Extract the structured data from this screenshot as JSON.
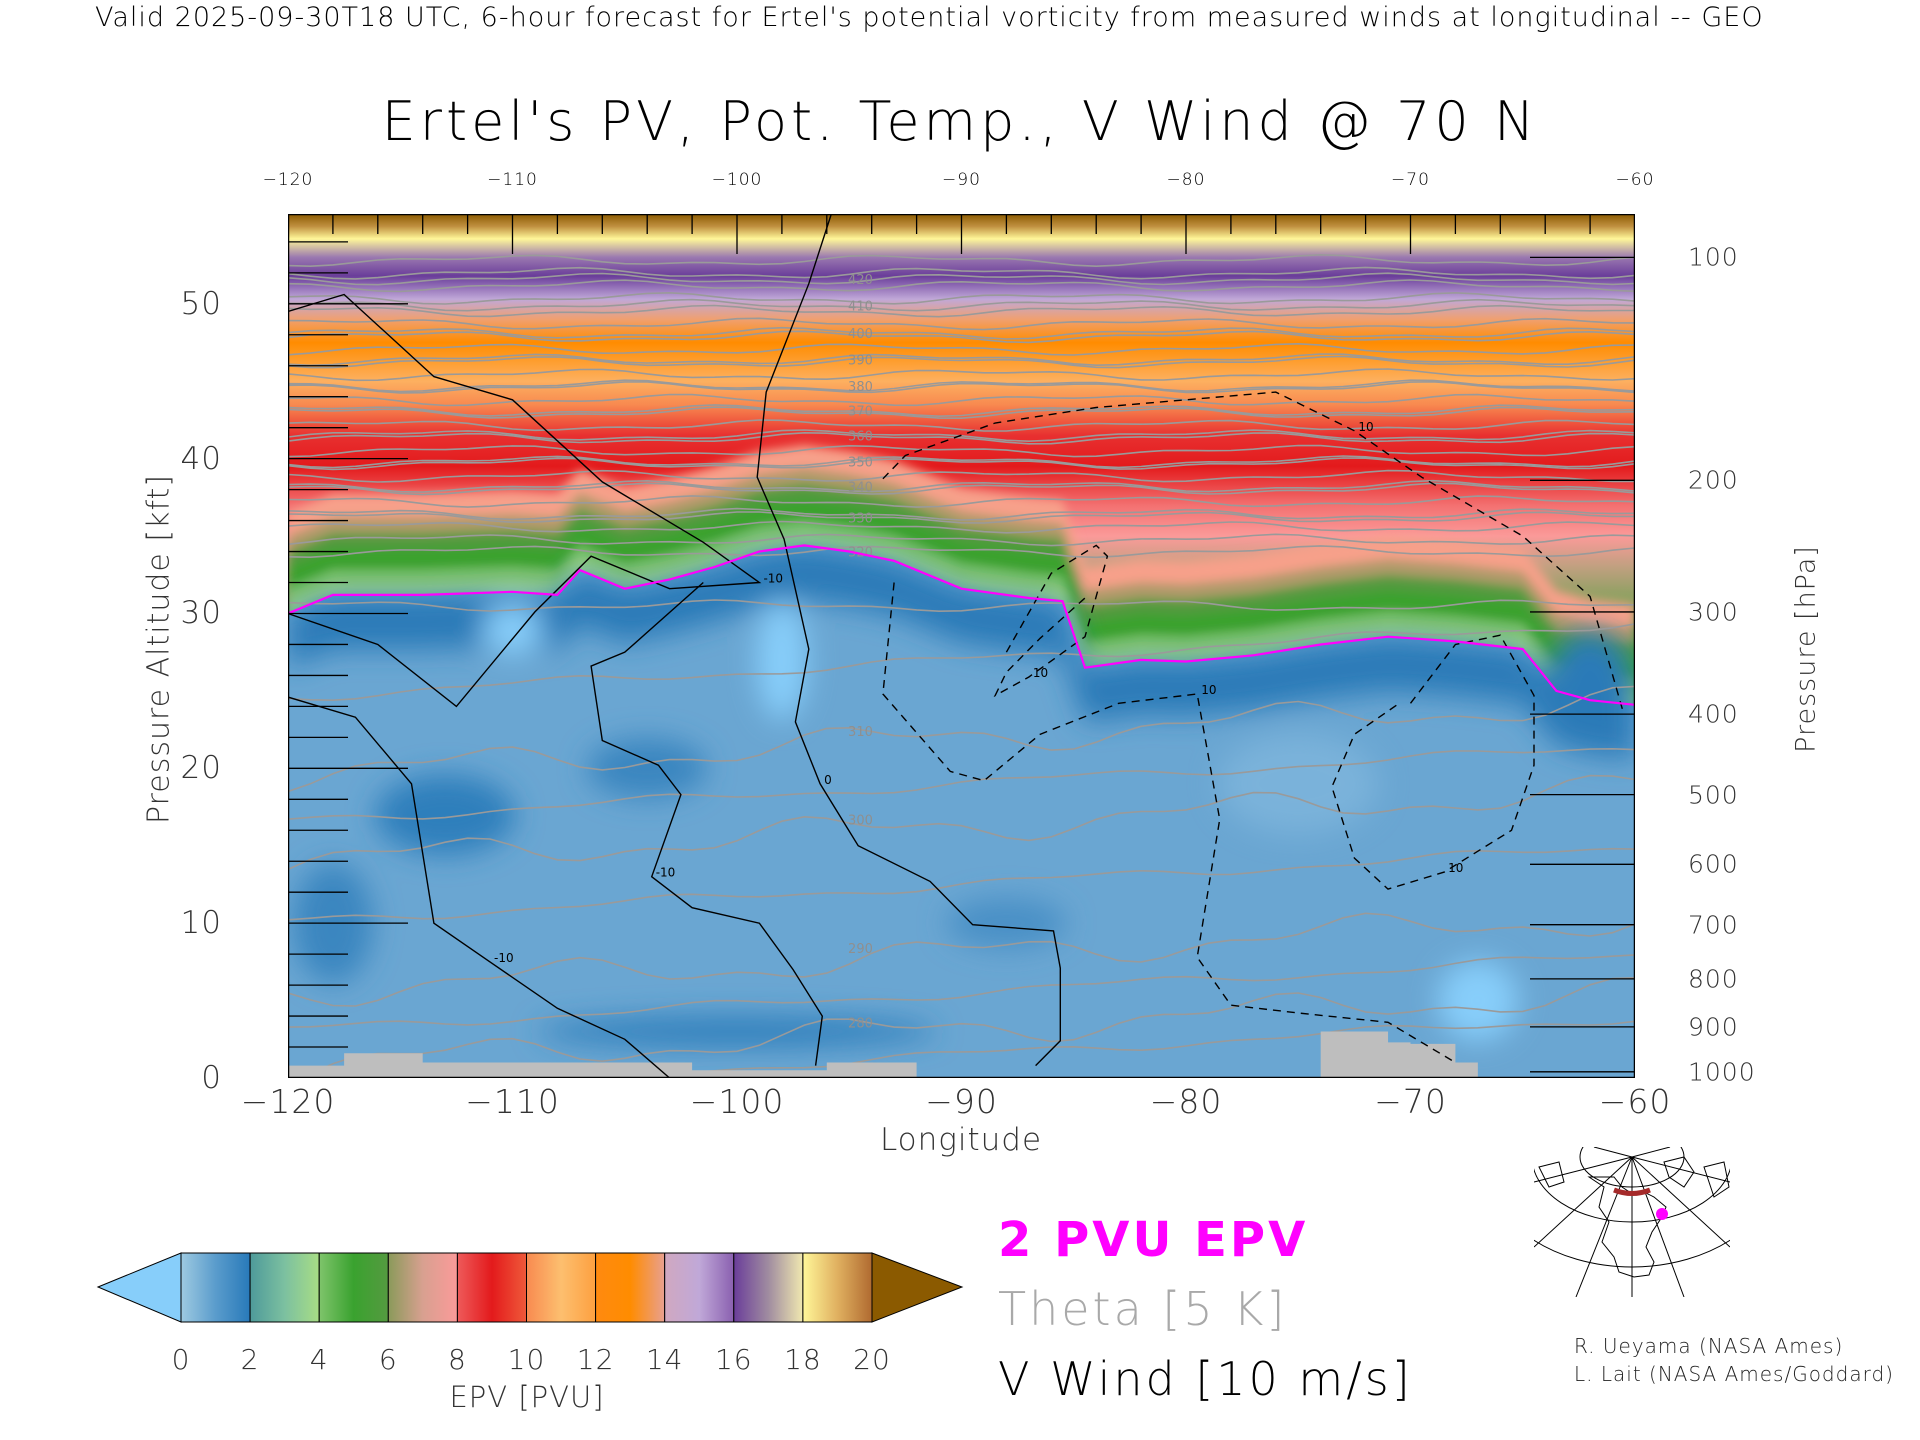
{
  "header": {
    "top_text": "Valid 2025-09-30T18 UTC, 6-hour forecast for Ertel's potential vorticity from measured winds at longitudinal -- GEO",
    "title": "Ertel's PV, Pot. Temp., V Wind @ 70 N"
  },
  "chart_data": {
    "type": "heatmap",
    "title": "Ertel's PV, Pot. Temp., V Wind @ 70 N",
    "xlabel": "Longitude",
    "ylabel": "Pressure Altitude [kft]",
    "y2label": "Pressure [hPa]",
    "xlim": [
      -120,
      -60
    ],
    "ylim": [
      0,
      55.8
    ],
    "x_ticks": [
      "-120",
      "-110",
      "-100",
      "-90",
      "-80",
      "-70",
      "-60"
    ],
    "x_tick_values": [
      -120,
      -110,
      -100,
      -90,
      -80,
      -70,
      -60
    ],
    "y_ticks": [
      "0",
      "10",
      "20",
      "30",
      "40",
      "50"
    ],
    "y_tick_values": [
      0,
      10,
      20,
      30,
      40,
      50
    ],
    "pressure_ticks": [
      {
        "label": "100",
        "kft": 53.0
      },
      {
        "label": "200",
        "kft": 38.6
      },
      {
        "label": "300",
        "kft": 30.1
      },
      {
        "label": "400",
        "kft": 23.5
      },
      {
        "label": "500",
        "kft": 18.3
      },
      {
        "label": "600",
        "kft": 13.8
      },
      {
        "label": "700",
        "kft": 9.9
      },
      {
        "label": "800",
        "kft": 6.4
      },
      {
        "label": "900",
        "kft": 3.3
      },
      {
        "label": "1000",
        "kft": 0.4
      }
    ],
    "tropopause_2pvu": {
      "name": "2 PVU EPV",
      "color": "#ff00ff",
      "lon": [
        -120,
        -118,
        -114,
        -110,
        -108,
        -107,
        -105,
        -103,
        -101,
        -99,
        -97,
        -95,
        -93,
        -90,
        -87,
        -85.5,
        -84.5,
        -82,
        -80,
        -77,
        -74,
        -71,
        -68,
        -65,
        -63.5,
        -62,
        -60
      ],
      "kft": [
        30.0,
        31.2,
        31.2,
        31.4,
        31.2,
        32.8,
        31.6,
        32.2,
        33.0,
        34.0,
        34.4,
        34.0,
        33.4,
        31.6,
        31.0,
        30.8,
        26.5,
        27.0,
        26.9,
        27.3,
        28.0,
        28.5,
        28.2,
        27.7,
        25.0,
        24.4,
        24.1
      ]
    },
    "theta_contours": {
      "name": "Theta [5 K]",
      "color": "#a9a9a9",
      "levels": [
        "420",
        "410",
        "400",
        "390",
        "380",
        "370",
        "360",
        "350",
        "340",
        "330",
        "320",
        "310",
        "300",
        "290",
        "280"
      ],
      "kft": [
        51.6,
        49.9,
        48.1,
        46.4,
        44.7,
        43.1,
        41.5,
        39.8,
        38.2,
        36.2,
        34.0,
        22.0,
        16.3,
        8.0,
        3.2
      ]
    },
    "v_wind_contours": {
      "name": "V Wind [10 m/s]",
      "lines": [
        {
          "label": "0",
          "style": "solid",
          "lon": [
            -95.8,
            -96.8,
            -98.7,
            -99.1,
            -97.9,
            -96.8,
            -97.4,
            -96.3,
            -94.6,
            -91.4,
            -89.5,
            -85.9,
            -85.6,
            -85.6,
            -86.7
          ],
          "kft": [
            55.8,
            51.3,
            44.3,
            38.8,
            34.8,
            27.7,
            23.0,
            19.0,
            15.0,
            12.7,
            9.9,
            9.5,
            7.1,
            2.4,
            0.8
          ]
        },
        {
          "label": "-10",
          "style": "solid",
          "lon": [
            -120,
            -117.5,
            -113.5,
            -110,
            -106,
            -101.5,
            -99,
            -103,
            -106.5,
            -109,
            -112.5,
            -116,
            -120
          ],
          "kft": [
            49.5,
            50.6,
            45.3,
            43.8,
            38.5,
            34.6,
            32.0,
            31.6,
            33.7,
            30.1,
            24.0,
            28.0,
            30.0
          ]
        },
        {
          "label": "-10",
          "style": "solid",
          "lon": [
            -120,
            -117,
            -114.5,
            -113.5,
            -111,
            -108,
            -105,
            -103
          ],
          "kft": [
            24.6,
            23.3,
            19.0,
            10.0,
            7.5,
            4.5,
            2.5,
            0
          ]
        },
        {
          "label": "-10",
          "style": "solid",
          "lon": [
            -101.5,
            -105,
            -106.5,
            -106,
            -103.5,
            -102.5,
            -103.8,
            -102,
            -99,
            -97.5,
            -96.2,
            -96.5
          ],
          "kft": [
            32.0,
            27.5,
            26.6,
            21.8,
            20.2,
            18.3,
            13.0,
            11.0,
            10.0,
            7.0,
            4.0,
            0.8
          ]
        },
        {
          "label": "10",
          "style": "dashed",
          "lon": [
            -93.5,
            -92.5,
            -88.5,
            -84,
            -76,
            -72.5,
            -69.5,
            -65,
            -62,
            -60.5
          ],
          "kft": [
            38.7,
            40.2,
            42.3,
            43.3,
            44.3,
            41.8,
            38.8,
            35.0,
            31.1,
            23.5
          ]
        },
        {
          "label": "10",
          "style": "dashed",
          "lon": [
            -88,
            -86,
            -84,
            -83.5,
            -84.5,
            -87,
            -88.5,
            -88,
            -86.5,
            -84.5
          ],
          "kft": [
            27.5,
            32.6,
            34.4,
            33.7,
            28.5,
            25.9,
            24.7,
            26.2,
            28.4,
            31.0
          ]
        },
        {
          "label": "10",
          "style": "dashed",
          "lon": [
            -93,
            -93.5,
            -90.5,
            -89,
            -86.5,
            -83,
            -79.5,
            -78.5,
            -79.5,
            -78,
            -75,
            -71,
            -68
          ],
          "kft": [
            32.0,
            24.8,
            19.8,
            19.2,
            22.2,
            24.2,
            24.8,
            16.7,
            7.8,
            4.7,
            4.2,
            3.6,
            1.0
          ]
        },
        {
          "label": "10",
          "style": "dashed",
          "lon": [
            -70,
            -68,
            -66,
            -64.5,
            -64.5,
            -65.5,
            -68.5,
            -71,
            -72.5,
            -73.5,
            -72.5,
            -70.5
          ],
          "kft": [
            24.2,
            28.0,
            28.6,
            24.7,
            20.2,
            16.0,
            13.3,
            12.2,
            14.2,
            18.8,
            22.2,
            24.2
          ]
        }
      ]
    },
    "colorbar": {
      "title": "EPV [PVU]",
      "tick_labels": [
        "0",
        "2",
        "4",
        "6",
        "8",
        "10",
        "12",
        "14",
        "16",
        "18",
        "20"
      ],
      "under_color": "#87cefa",
      "over_color": "#8b5a00",
      "segments": [
        [
          "#9ecae1",
          "#5a9ccc",
          "#2879b9"
        ],
        [
          "#4e9a9a",
          "#7cc0a0",
          "#a8dd85"
        ],
        [
          "#7fc46b",
          "#3aa22f",
          "#559a40"
        ],
        [
          "#8a9a5a",
          "#d8a090",
          "#fb9a99"
        ],
        [
          "#ee5a5a",
          "#e31a1c",
          "#ef5a3a"
        ],
        [
          "#f88a50",
          "#fdbf6f",
          "#fda040"
        ],
        [
          "#ff8a10",
          "#ff8c00",
          "#e8a090"
        ],
        [
          "#d0a8c0",
          "#c0a8d8",
          "#8a60b0"
        ],
        [
          "#6a3d9a",
          "#a08ca0",
          "#f0e8b0"
        ],
        [
          "#fff799",
          "#e0b060",
          "#b06a30"
        ]
      ]
    },
    "terrain_color": "#bebebe"
  },
  "legend": {
    "pv_label": "2 PVU EPV",
    "theta_label": "Theta [5 K]",
    "wind_label": "V Wind [10 m/s]"
  },
  "credits": {
    "line1": "R. Ueyama (NASA Ames)",
    "line2": "L. Lait (NASA Ames/Goddard)"
  }
}
